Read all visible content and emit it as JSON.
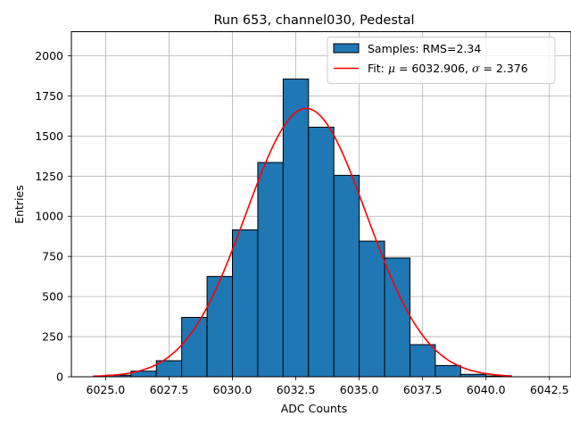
{
  "chart_data": {
    "type": "bar",
    "title": "Run 653, channel030, Pedestal",
    "xlabel": "ADC Counts",
    "ylabel": "Entries",
    "xlim": [
      6023.65,
      6043.35
    ],
    "ylim": [
      0,
      2150
    ],
    "xticks": [
      6025.0,
      6027.5,
      6030.0,
      6032.5,
      6035.0,
      6037.5,
      6040.0,
      6042.5
    ],
    "xtick_labels": [
      "6025.0",
      "6027.5",
      "6030.0",
      "6032.5",
      "6035.0",
      "6037.5",
      "6040.0",
      "6042.5"
    ],
    "yticks": [
      0,
      250,
      500,
      750,
      1000,
      1250,
      1500,
      1750,
      2000
    ],
    "ytick_labels": [
      "0",
      "250",
      "500",
      "750",
      "1000",
      "1250",
      "1500",
      "1750",
      "2000"
    ],
    "grid": true,
    "legend_position": "top-right",
    "histogram": {
      "name": "Samples: RMS=2.34",
      "color": "#1f77b4",
      "edge_color": "#000000",
      "bins": [
        {
          "x0": 6025,
          "x1": 6026,
          "value": 10
        },
        {
          "x0": 6026,
          "x1": 6027,
          "value": 35
        },
        {
          "x0": 6027,
          "x1": 6028,
          "value": 100
        },
        {
          "x0": 6028,
          "x1": 6029,
          "value": 370
        },
        {
          "x0": 6029,
          "x1": 6030,
          "value": 625
        },
        {
          "x0": 6030,
          "x1": 6031,
          "value": 915
        },
        {
          "x0": 6031,
          "x1": 6032,
          "value": 1335
        },
        {
          "x0": 6032,
          "x1": 6033,
          "value": 1855
        },
        {
          "x0": 6033,
          "x1": 6034,
          "value": 1555
        },
        {
          "x0": 6034,
          "x1": 6035,
          "value": 1255
        },
        {
          "x0": 6035,
          "x1": 6036,
          "value": 845
        },
        {
          "x0": 6036,
          "x1": 6037,
          "value": 740
        },
        {
          "x0": 6037,
          "x1": 6038,
          "value": 200
        },
        {
          "x0": 6038,
          "x1": 6039,
          "value": 70
        },
        {
          "x0": 6039,
          "x1": 6040,
          "value": 15
        },
        {
          "x0": 6040,
          "x1": 6041,
          "value": 5
        }
      ]
    },
    "fit": {
      "name_prefix": "Fit: ",
      "mu_symbol": "μ",
      "mu_text": " = 6032.906, ",
      "sigma_symbol": "σ",
      "sigma_text": " = 2.376",
      "color": "#ff0000",
      "mu": 6032.906,
      "sigma": 2.376,
      "peak": 1672,
      "x_range": [
        6024.5,
        6041.0
      ]
    }
  }
}
